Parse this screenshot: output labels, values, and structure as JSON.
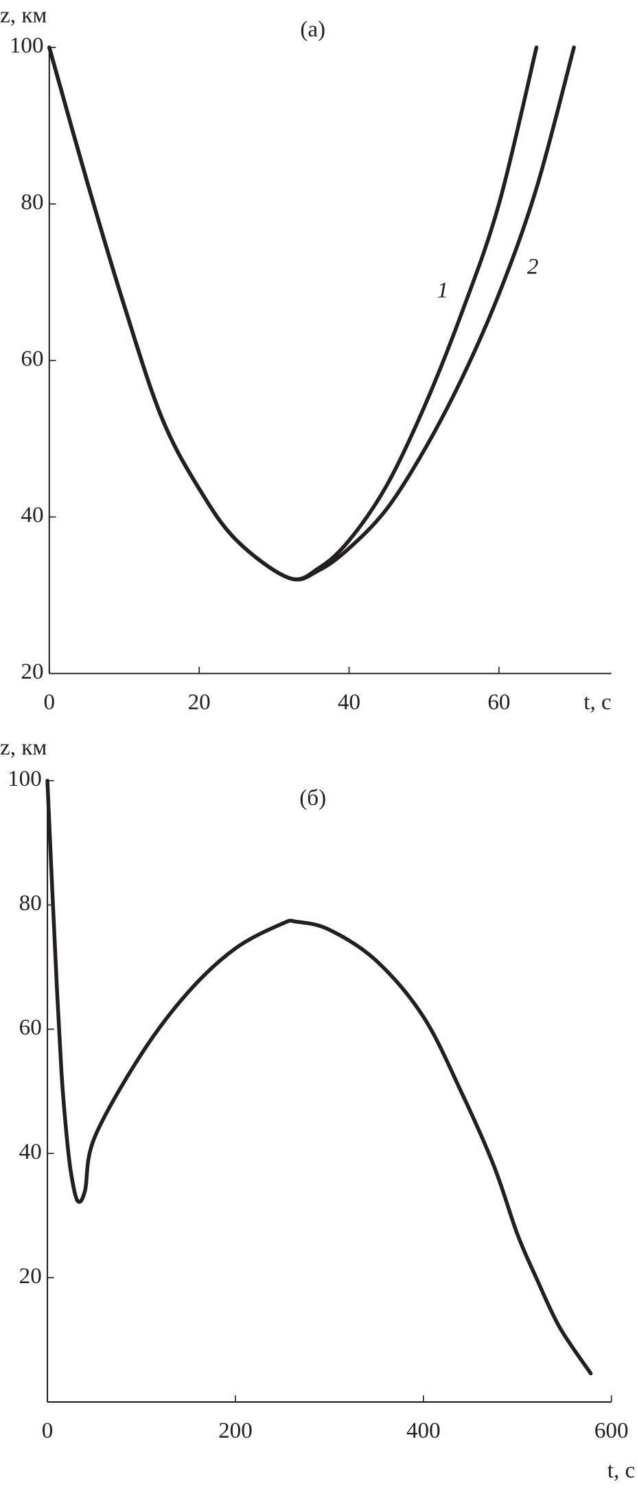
{
  "chart_data": [
    {
      "type": "line",
      "title": "(a)",
      "x_label": "t, с",
      "y_label": "z, км",
      "xlim": [
        0,
        75
      ],
      "ylim": [
        20,
        100
      ],
      "xticks": [
        0,
        20,
        40,
        60
      ],
      "yticks": [
        20,
        40,
        60,
        80,
        100
      ],
      "series": [
        {
          "name": "1",
          "color": "#231f20",
          "x": [
            0,
            5,
            10,
            15,
            20,
            25,
            32,
            36,
            40,
            45,
            50,
            55,
            60,
            65
          ],
          "values": [
            100,
            83,
            67,
            52.7,
            43.6,
            37,
            32.2,
            33.5,
            37,
            44,
            54,
            66,
            80,
            100
          ]
        },
        {
          "name": "2",
          "color": "#231f20",
          "x": [
            0,
            5,
            10,
            15,
            20,
            25,
            32,
            36,
            40,
            45,
            50,
            55,
            60,
            65,
            70
          ],
          "values": [
            100,
            83,
            67,
            52.7,
            43.6,
            37,
            32.2,
            33.2,
            36,
            41,
            48.5,
            57.6,
            68.5,
            82,
            100
          ]
        }
      ]
    },
    {
      "type": "line",
      "title": "(б)",
      "x_label": "t, с",
      "y_label": "z, км",
      "xlim": [
        0,
        600
      ],
      "ylim": [
        0,
        100
      ],
      "xticks": [
        0,
        200,
        400,
        600
      ],
      "yticks": [
        20,
        40,
        60,
        80,
        100
      ],
      "series": [
        {
          "color": "#231f20",
          "x": [
            0,
            5,
            10,
            15,
            20,
            25,
            32,
            40,
            50,
            100,
            150,
            200,
            250,
            265,
            300,
            350,
            400,
            440,
            475,
            500,
            520,
            545,
            578
          ],
          "values": [
            100,
            83,
            67,
            53,
            43.6,
            37,
            32.4,
            34,
            42.5,
            56,
            66,
            73,
            77,
            77.3,
            76,
            71,
            62,
            50,
            38,
            27,
            20,
            12,
            4.6
          ]
        }
      ]
    }
  ]
}
